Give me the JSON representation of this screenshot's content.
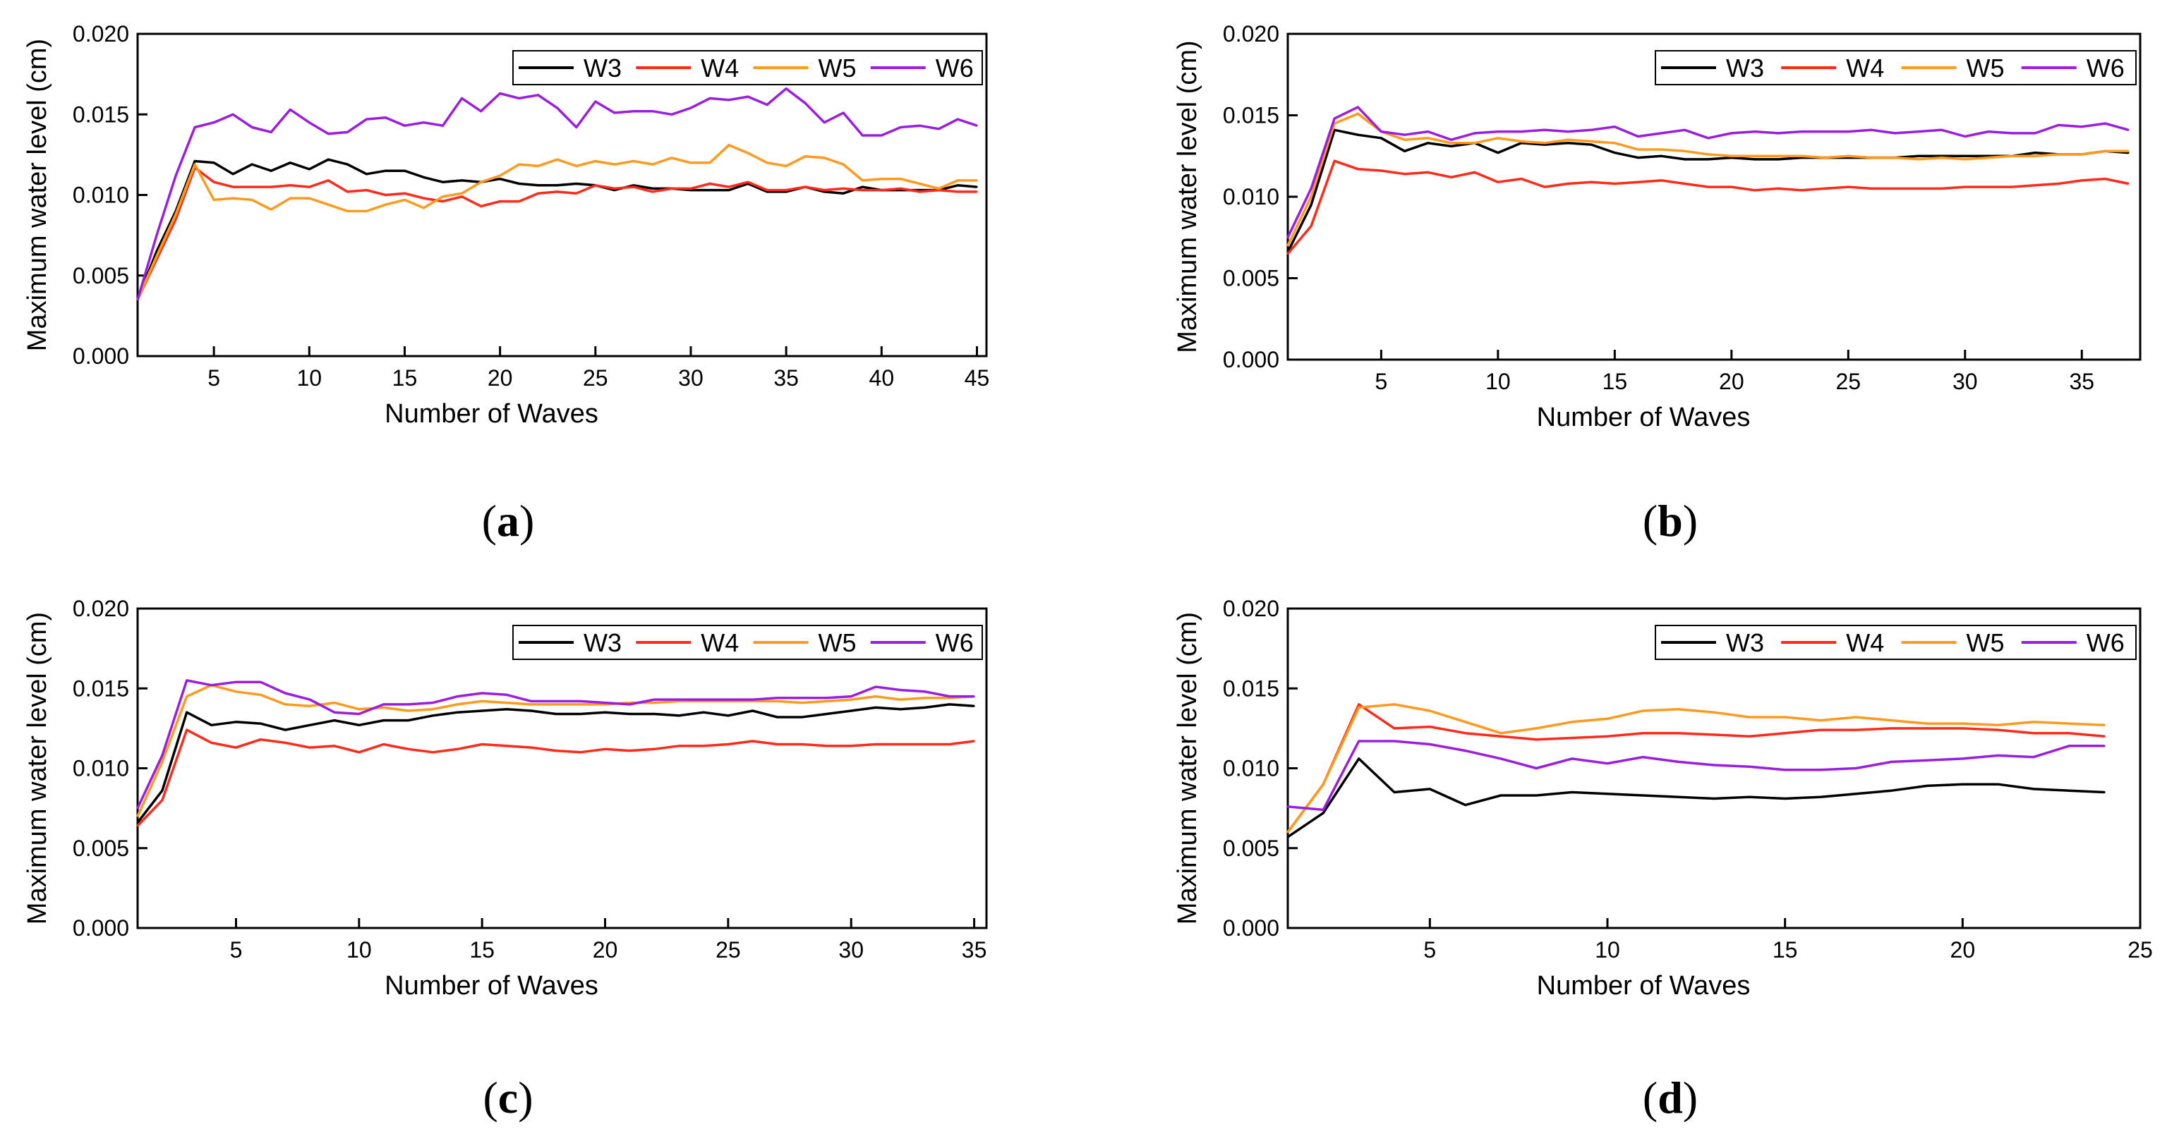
{
  "chart_data": [
    {
      "type": "line",
      "caption": "a",
      "xlabel": "Number of Waves",
      "ylabel": "Maximum water level (cm)",
      "xlim": [
        1,
        45.5
      ],
      "ylim": [
        0,
        0.02
      ],
      "xticks": [
        5,
        10,
        15,
        20,
        25,
        30,
        35,
        40,
        45
      ],
      "yticks": [
        0.0,
        0.005,
        0.01,
        0.015,
        0.02
      ],
      "grid": false,
      "legend": "top-right",
      "x": [
        1,
        2,
        3,
        4,
        5,
        6,
        7,
        8,
        9,
        10,
        11,
        12,
        13,
        14,
        15,
        16,
        17,
        18,
        19,
        20,
        21,
        22,
        23,
        24,
        25,
        26,
        27,
        28,
        29,
        30,
        31,
        32,
        33,
        34,
        35,
        36,
        37,
        38,
        39,
        40,
        41,
        42,
        43,
        44,
        45
      ],
      "series": [
        {
          "name": "W3",
          "color": "#000000",
          "values": [
            0.0035,
            0.0065,
            0.009,
            0.0121,
            0.012,
            0.0113,
            0.0119,
            0.0115,
            0.012,
            0.0116,
            0.0122,
            0.0119,
            0.0113,
            0.0115,
            0.0115,
            0.0111,
            0.0108,
            0.0109,
            0.0108,
            0.011,
            0.0107,
            0.0106,
            0.0106,
            0.0107,
            0.0106,
            0.0103,
            0.0106,
            0.0104,
            0.0104,
            0.0103,
            0.0103,
            0.0103,
            0.0107,
            0.0102,
            0.0102,
            0.0105,
            0.0102,
            0.0101,
            0.0105,
            0.0103,
            0.0103,
            0.0103,
            0.0103,
            0.0106,
            0.0105
          ]
        },
        {
          "name": "W4",
          "color": "#ff2a1a",
          "values": [
            0.0035,
            0.006,
            0.0085,
            0.0117,
            0.0108,
            0.0105,
            0.0105,
            0.0105,
            0.0106,
            0.0105,
            0.0109,
            0.0102,
            0.0103,
            0.01,
            0.0101,
            0.0098,
            0.0096,
            0.0099,
            0.0093,
            0.0096,
            0.0096,
            0.0101,
            0.0102,
            0.0101,
            0.0106,
            0.0104,
            0.0105,
            0.0102,
            0.0104,
            0.0104,
            0.0107,
            0.0105,
            0.0108,
            0.0103,
            0.0103,
            0.0105,
            0.0103,
            0.0104,
            0.0103,
            0.0103,
            0.0104,
            0.0102,
            0.0103,
            0.0102,
            0.0102
          ]
        },
        {
          "name": "W5",
          "color": "#ff9a1f",
          "values": [
            0.0035,
            0.0062,
            0.0088,
            0.0119,
            0.0097,
            0.0098,
            0.0097,
            0.0091,
            0.0098,
            0.0098,
            0.0094,
            0.009,
            0.009,
            0.0094,
            0.0097,
            0.0092,
            0.0099,
            0.0101,
            0.0108,
            0.0112,
            0.0119,
            0.0118,
            0.0122,
            0.0118,
            0.0121,
            0.0119,
            0.0121,
            0.0119,
            0.0123,
            0.012,
            0.012,
            0.0131,
            0.0126,
            0.012,
            0.0118,
            0.0124,
            0.0123,
            0.0119,
            0.0109,
            0.011,
            0.011,
            0.0107,
            0.0104,
            0.0109,
            0.0109
          ]
        },
        {
          "name": "W6",
          "color": "#9b1ee0",
          "values": [
            0.0035,
            0.0075,
            0.0112,
            0.0142,
            0.0145,
            0.015,
            0.0142,
            0.0139,
            0.0153,
            0.0145,
            0.0138,
            0.0139,
            0.0147,
            0.0148,
            0.0143,
            0.0145,
            0.0143,
            0.016,
            0.0152,
            0.0163,
            0.016,
            0.0162,
            0.0154,
            0.0142,
            0.0158,
            0.0151,
            0.0152,
            0.0152,
            0.015,
            0.0154,
            0.016,
            0.0159,
            0.0161,
            0.0156,
            0.0166,
            0.0157,
            0.0145,
            0.0151,
            0.0137,
            0.0137,
            0.0142,
            0.0143,
            0.0141,
            0.0147,
            0.0143
          ]
        }
      ]
    },
    {
      "type": "line",
      "caption": "b",
      "xlabel": "Number of Waves",
      "ylabel": "Maximum water level (cm)",
      "xlim": [
        1,
        37.5
      ],
      "ylim": [
        0,
        0.02
      ],
      "xticks": [
        5,
        10,
        15,
        20,
        25,
        30,
        35
      ],
      "yticks": [
        0.0,
        0.005,
        0.01,
        0.015,
        0.02
      ],
      "grid": false,
      "legend": "top-right",
      "x": [
        1,
        2,
        3,
        4,
        5,
        6,
        7,
        8,
        9,
        10,
        11,
        12,
        13,
        14,
        15,
        16,
        17,
        18,
        19,
        20,
        21,
        22,
        23,
        24,
        25,
        26,
        27,
        28,
        29,
        30,
        31,
        32,
        33,
        34,
        35,
        36,
        37
      ],
      "series": [
        {
          "name": "W3",
          "color": "#000000",
          "values": [
            0.0066,
            0.0095,
            0.0141,
            0.0138,
            0.0136,
            0.0128,
            0.0133,
            0.0131,
            0.0133,
            0.0127,
            0.0133,
            0.0132,
            0.0133,
            0.0132,
            0.0127,
            0.0124,
            0.0125,
            0.0123,
            0.0123,
            0.0124,
            0.0123,
            0.0123,
            0.0124,
            0.0124,
            0.0124,
            0.0124,
            0.0124,
            0.0125,
            0.0125,
            0.0125,
            0.0125,
            0.0125,
            0.0127,
            0.0126,
            0.0126,
            0.0128,
            0.0127
          ]
        },
        {
          "name": "W4",
          "color": "#ff2a1a",
          "values": [
            0.0065,
            0.0082,
            0.0122,
            0.0117,
            0.0116,
            0.0114,
            0.0115,
            0.0112,
            0.0115,
            0.0109,
            0.0111,
            0.0106,
            0.0108,
            0.0109,
            0.0108,
            0.0109,
            0.011,
            0.0108,
            0.0106,
            0.0106,
            0.0104,
            0.0105,
            0.0104,
            0.0105,
            0.0106,
            0.0105,
            0.0105,
            0.0105,
            0.0105,
            0.0106,
            0.0106,
            0.0106,
            0.0107,
            0.0108,
            0.011,
            0.0111,
            0.0108
          ]
        },
        {
          "name": "W5",
          "color": "#ff9a1f",
          "values": [
            0.007,
            0.01,
            0.0145,
            0.0151,
            0.014,
            0.0135,
            0.0136,
            0.0133,
            0.0133,
            0.0136,
            0.0134,
            0.0133,
            0.0135,
            0.0134,
            0.0133,
            0.0129,
            0.0129,
            0.0128,
            0.0126,
            0.0125,
            0.0125,
            0.0125,
            0.0125,
            0.0124,
            0.0125,
            0.0124,
            0.0124,
            0.0123,
            0.0124,
            0.0123,
            0.0124,
            0.0125,
            0.0125,
            0.0126,
            0.0126,
            0.0128,
            0.0128
          ]
        },
        {
          "name": "W6",
          "color": "#9b1ee0",
          "values": [
            0.0075,
            0.0105,
            0.0148,
            0.0155,
            0.014,
            0.0138,
            0.014,
            0.0135,
            0.0139,
            0.014,
            0.014,
            0.0141,
            0.014,
            0.0141,
            0.0143,
            0.0137,
            0.0139,
            0.0141,
            0.0136,
            0.0139,
            0.014,
            0.0139,
            0.014,
            0.014,
            0.014,
            0.0141,
            0.0139,
            0.014,
            0.0141,
            0.0137,
            0.014,
            0.0139,
            0.0139,
            0.0144,
            0.0143,
            0.0145,
            0.0141
          ]
        }
      ]
    },
    {
      "type": "line",
      "caption": "c",
      "xlabel": "Number of Waves",
      "ylabel": "Maximum water level (cm)",
      "xlim": [
        1,
        35.5
      ],
      "ylim": [
        0,
        0.02
      ],
      "xticks": [
        5,
        10,
        15,
        20,
        25,
        30,
        35
      ],
      "yticks": [
        0.0,
        0.005,
        0.01,
        0.015,
        0.02
      ],
      "grid": false,
      "legend": "top-right",
      "x": [
        1,
        2,
        3,
        4,
        5,
        6,
        7,
        8,
        9,
        10,
        11,
        12,
        13,
        14,
        15,
        16,
        17,
        18,
        19,
        20,
        21,
        22,
        23,
        24,
        25,
        26,
        27,
        28,
        29,
        30,
        31,
        32,
        33,
        34,
        35
      ],
      "series": [
        {
          "name": "W3",
          "color": "#000000",
          "values": [
            0.0066,
            0.0086,
            0.0135,
            0.0127,
            0.0129,
            0.0128,
            0.0124,
            0.0127,
            0.013,
            0.0127,
            0.013,
            0.013,
            0.0133,
            0.0135,
            0.0136,
            0.0137,
            0.0136,
            0.0134,
            0.0134,
            0.0135,
            0.0134,
            0.0134,
            0.0133,
            0.0135,
            0.0133,
            0.0136,
            0.0132,
            0.0132,
            0.0134,
            0.0136,
            0.0138,
            0.0137,
            0.0138,
            0.014,
            0.0139
          ]
        },
        {
          "name": "W4",
          "color": "#ff2a1a",
          "values": [
            0.0064,
            0.008,
            0.0124,
            0.0116,
            0.0113,
            0.0118,
            0.0116,
            0.0113,
            0.0114,
            0.011,
            0.0115,
            0.0112,
            0.011,
            0.0112,
            0.0115,
            0.0114,
            0.0113,
            0.0111,
            0.011,
            0.0112,
            0.0111,
            0.0112,
            0.0114,
            0.0114,
            0.0115,
            0.0117,
            0.0115,
            0.0115,
            0.0114,
            0.0114,
            0.0115,
            0.0115,
            0.0115,
            0.0115,
            0.0117
          ]
        },
        {
          "name": "W5",
          "color": "#ff9a1f",
          "values": [
            0.007,
            0.0104,
            0.0145,
            0.0152,
            0.0148,
            0.0146,
            0.014,
            0.0139,
            0.0141,
            0.0137,
            0.0138,
            0.0136,
            0.0137,
            0.014,
            0.0142,
            0.0141,
            0.014,
            0.014,
            0.014,
            0.014,
            0.0141,
            0.0141,
            0.0142,
            0.0142,
            0.0142,
            0.0142,
            0.0142,
            0.0141,
            0.0142,
            0.0143,
            0.0145,
            0.0143,
            0.0144,
            0.0144,
            0.0145
          ]
        },
        {
          "name": "W6",
          "color": "#9b1ee0",
          "values": [
            0.0075,
            0.0108,
            0.0155,
            0.0152,
            0.0154,
            0.0154,
            0.0147,
            0.0143,
            0.0135,
            0.0134,
            0.014,
            0.014,
            0.0141,
            0.0145,
            0.0147,
            0.0146,
            0.0142,
            0.0142,
            0.0142,
            0.0141,
            0.014,
            0.0143,
            0.0143,
            0.0143,
            0.0143,
            0.0143,
            0.0144,
            0.0144,
            0.0144,
            0.0145,
            0.0151,
            0.0149,
            0.0148,
            0.0145,
            0.0145
          ]
        }
      ]
    },
    {
      "type": "line",
      "caption": "d",
      "xlabel": "Number of Waves",
      "ylabel": "Maximum water level (cm)",
      "xlim": [
        1,
        25
      ],
      "ylim": [
        0,
        0.02
      ],
      "xticks": [
        5,
        10,
        15,
        20,
        25
      ],
      "yticks": [
        0.0,
        0.005,
        0.01,
        0.015,
        0.02
      ],
      "grid": false,
      "legend": "top-right",
      "x": [
        1,
        2,
        3,
        4,
        5,
        6,
        7,
        8,
        9,
        10,
        11,
        12,
        13,
        14,
        15,
        16,
        17,
        18,
        19,
        20,
        21,
        22,
        23,
        24
      ],
      "series": [
        {
          "name": "W3",
          "color": "#000000",
          "values": [
            0.0057,
            0.0072,
            0.0106,
            0.0085,
            0.0087,
            0.0077,
            0.0083,
            0.0083,
            0.0085,
            0.0084,
            0.0083,
            0.0082,
            0.0081,
            0.0082,
            0.0081,
            0.0082,
            0.0084,
            0.0086,
            0.0089,
            0.009,
            0.009,
            0.0087,
            0.0086,
            0.0085
          ]
        },
        {
          "name": "W4",
          "color": "#ff2a1a",
          "values": [
            0.006,
            0.009,
            0.014,
            0.0125,
            0.0126,
            0.0122,
            0.012,
            0.0118,
            0.0119,
            0.012,
            0.0122,
            0.0122,
            0.0121,
            0.012,
            0.0122,
            0.0124,
            0.0124,
            0.0125,
            0.0125,
            0.0125,
            0.0124,
            0.0122,
            0.0122,
            0.012
          ]
        },
        {
          "name": "W5",
          "color": "#ff9a1f",
          "values": [
            0.006,
            0.009,
            0.0138,
            0.014,
            0.0136,
            0.0129,
            0.0122,
            0.0125,
            0.0129,
            0.0131,
            0.0136,
            0.0137,
            0.0135,
            0.0132,
            0.0132,
            0.013,
            0.0132,
            0.013,
            0.0128,
            0.0128,
            0.0127,
            0.0129,
            0.0128,
            0.0127
          ]
        },
        {
          "name": "W6",
          "color": "#9b1ee0",
          "values": [
            0.0076,
            0.0074,
            0.0117,
            0.0117,
            0.0115,
            0.0111,
            0.0106,
            0.01,
            0.0106,
            0.0103,
            0.0107,
            0.0104,
            0.0102,
            0.0101,
            0.0099,
            0.0099,
            0.01,
            0.0104,
            0.0105,
            0.0106,
            0.0108,
            0.0107,
            0.0114,
            0.0114
          ]
        }
      ]
    }
  ]
}
